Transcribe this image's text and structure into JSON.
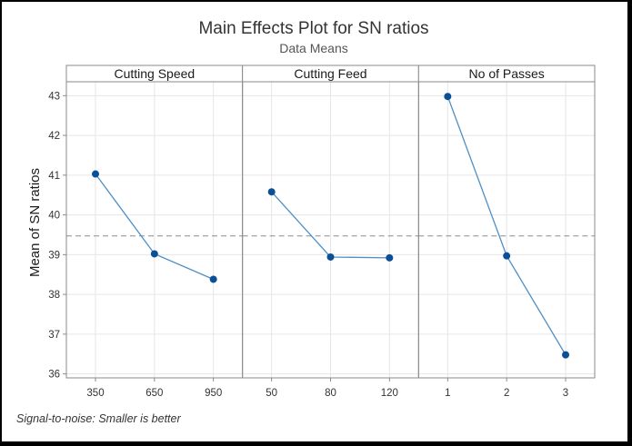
{
  "chart_data": {
    "type": "line",
    "title": "Main Effects Plot for SN ratios",
    "subtitle": "Data Means",
    "ylabel": "Mean of SN ratios",
    "footnote": "Signal-to-noise: Smaller is better",
    "ylim": [
      35.9,
      43.35
    ],
    "yticks": [
      36,
      37,
      38,
      39,
      40,
      41,
      42,
      43
    ],
    "reference_line": 39.47,
    "grid": true,
    "colors": {
      "line": "#4f8fc4",
      "marker": "#0b4f96",
      "reference": "#8c8c8c",
      "panel_header": "#ffffff"
    },
    "panels": [
      {
        "name": "Cutting Speed",
        "categories": [
          "350",
          "650",
          "950"
        ],
        "values": [
          41.03,
          39.02,
          38.38
        ]
      },
      {
        "name": "Cutting Feed",
        "categories": [
          "50",
          "80",
          "120"
        ],
        "values": [
          40.58,
          38.94,
          38.92
        ]
      },
      {
        "name": "No of Passes",
        "categories": [
          "1",
          "2",
          "3"
        ],
        "values": [
          42.98,
          38.97,
          36.48
        ]
      }
    ]
  }
}
